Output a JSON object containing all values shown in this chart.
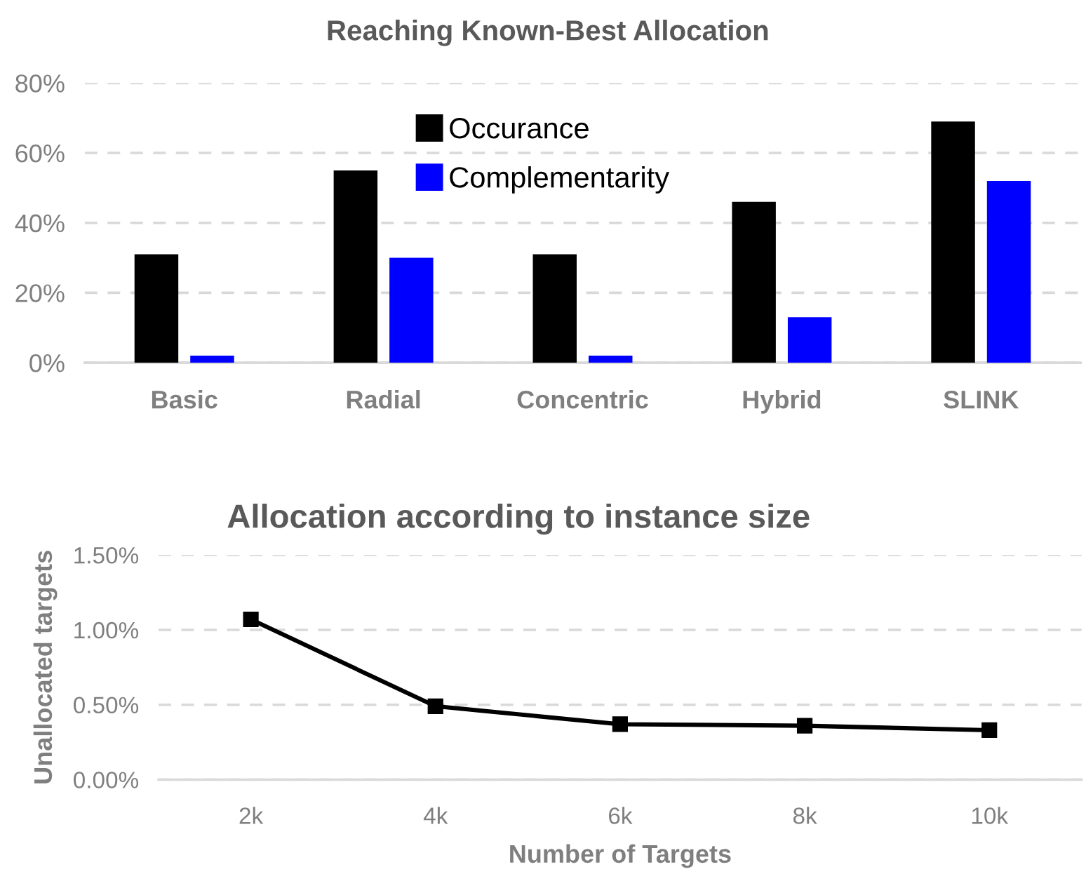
{
  "chart_data": [
    {
      "type": "bar",
      "title": "Reaching Known-Best Allocation",
      "categories": [
        "Basic",
        "Radial",
        "Concentric",
        "Hybrid",
        "SLINK"
      ],
      "series": [
        {
          "name": "Occurance",
          "color": "#000000",
          "values": [
            31,
            55,
            31,
            46,
            69
          ]
        },
        {
          "name": "Complementarity",
          "color": "#0000ff",
          "values": [
            2,
            30,
            2,
            13,
            52
          ]
        }
      ],
      "ylim": [
        0,
        80
      ],
      "yticks": [
        {
          "value": 0,
          "label": "0%"
        },
        {
          "value": 20,
          "label": "20%"
        },
        {
          "value": 40,
          "label": "40%"
        },
        {
          "value": 60,
          "label": "60%"
        },
        {
          "value": 80,
          "label": "80%"
        }
      ],
      "grid": "y",
      "legend": "top"
    },
    {
      "type": "line",
      "title": "Allocation according to instance size",
      "xlabel": "Number of Targets",
      "ylabel": "Unallocated targets",
      "categories": [
        "2k",
        "4k",
        "6k",
        "8k",
        "10k"
      ],
      "series": [
        {
          "color": "#000000",
          "values": [
            1.07,
            0.49,
            0.37,
            0.36,
            0.33
          ]
        }
      ],
      "ylim": [
        0,
        1.5
      ],
      "yticks": [
        {
          "value": 0,
          "label": "0.00%"
        },
        {
          "value": 0.5,
          "label": "0.50%"
        },
        {
          "value": 1.0,
          "label": "1.00%"
        },
        {
          "value": 1.5,
          "label": "1.50%"
        }
      ],
      "grid": "y",
      "marker": "square",
      "line_style": "solid"
    }
  ]
}
